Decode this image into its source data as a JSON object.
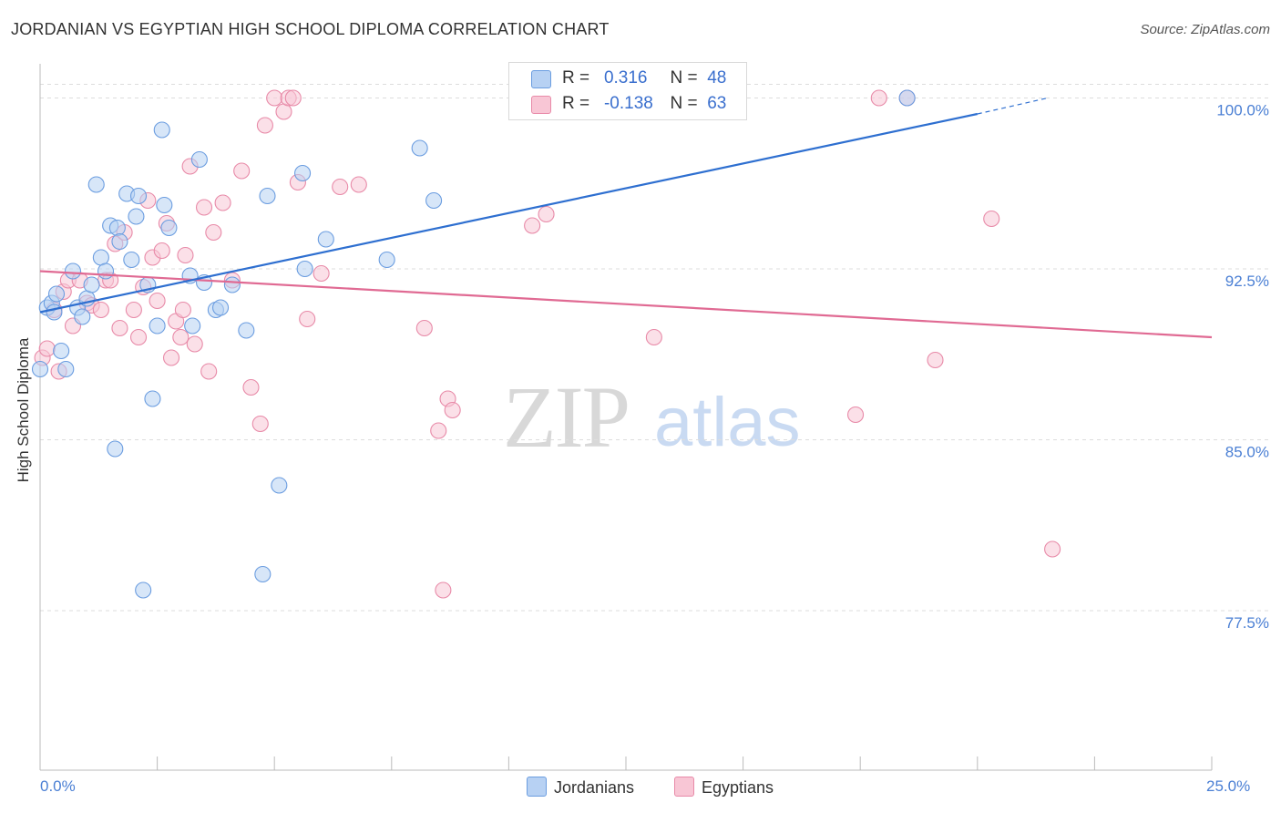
{
  "title": "JORDANIAN VS EGYPTIAN HIGH SCHOOL DIPLOMA CORRELATION CHART",
  "source": "Source: ZipAtlas.com",
  "watermark": {
    "part1": "ZIP",
    "part2": "atlas"
  },
  "colors": {
    "jordanian_fill": "#b7d1f3",
    "jordanian_stroke": "#6b9de0",
    "jordanian_line": "#2e6fd0",
    "egyptian_fill": "#f8c6d5",
    "egyptian_stroke": "#e88aa8",
    "egyptian_line": "#e06a93",
    "tick_label": "#4a7fd4",
    "grid": "#dddddd"
  },
  "legend_top": {
    "rows": [
      {
        "r_label": "R =",
        "r_value": "0.316",
        "n_label": "N =",
        "n_value": "48"
      },
      {
        "r_label": "R =",
        "r_value": "-0.138",
        "n_label": "N =",
        "n_value": "63"
      }
    ]
  },
  "legend_bottom": {
    "jordanians": "Jordanians",
    "egyptians": "Egyptians"
  },
  "chart_data": {
    "type": "scatter",
    "xlabel": "",
    "ylabel": "High School Diploma",
    "xlim": [
      0,
      25
    ],
    "ylim": [
      70.5,
      101.5
    ],
    "x_tick_labels": [
      "0.0%",
      "25.0%"
    ],
    "y_ticks": [
      77.5,
      85.0,
      92.5,
      100.0
    ],
    "y_tick_labels": [
      "77.5%",
      "85.0%",
      "92.5%",
      "100.0%"
    ],
    "grid": true,
    "legend_position": "top-center",
    "series": [
      {
        "name": "Jordanians",
        "R": 0.316,
        "N": 48,
        "trend": {
          "x0": 0.0,
          "y0": 90.6,
          "x1": 20.0,
          "y1": 99.3,
          "dashed_to_x": 21.5,
          "dashed_to_y": 100.0
        },
        "points": [
          [
            0.0,
            88.1
          ],
          [
            0.15,
            90.8
          ],
          [
            0.25,
            91.0
          ],
          [
            0.3,
            90.6
          ],
          [
            0.35,
            91.4
          ],
          [
            0.45,
            88.9
          ],
          [
            0.55,
            88.1
          ],
          [
            0.7,
            92.4
          ],
          [
            0.8,
            90.8
          ],
          [
            0.9,
            90.4
          ],
          [
            1.0,
            91.2
          ],
          [
            1.1,
            91.8
          ],
          [
            1.2,
            96.2
          ],
          [
            1.3,
            93.0
          ],
          [
            1.4,
            92.4
          ],
          [
            1.5,
            94.4
          ],
          [
            1.6,
            84.6
          ],
          [
            1.65,
            94.3
          ],
          [
            1.7,
            93.7
          ],
          [
            1.85,
            95.8
          ],
          [
            1.95,
            92.9
          ],
          [
            2.05,
            94.8
          ],
          [
            2.1,
            95.7
          ],
          [
            2.2,
            78.4
          ],
          [
            2.3,
            91.8
          ],
          [
            2.4,
            86.8
          ],
          [
            2.5,
            90.0
          ],
          [
            2.6,
            98.6
          ],
          [
            2.65,
            95.3
          ],
          [
            2.75,
            94.3
          ],
          [
            3.2,
            92.2
          ],
          [
            3.25,
            90.0
          ],
          [
            3.4,
            97.3
          ],
          [
            3.5,
            91.9
          ],
          [
            3.75,
            90.7
          ],
          [
            3.85,
            90.8
          ],
          [
            4.1,
            91.8
          ],
          [
            4.4,
            89.8
          ],
          [
            4.75,
            79.1
          ],
          [
            4.85,
            95.7
          ],
          [
            5.1,
            83.0
          ],
          [
            5.6,
            96.7
          ],
          [
            5.65,
            92.5
          ],
          [
            6.1,
            93.8
          ],
          [
            7.4,
            92.9
          ],
          [
            8.1,
            97.8
          ],
          [
            8.4,
            95.5
          ],
          [
            18.5,
            100.0
          ]
        ]
      },
      {
        "name": "Egyptians",
        "R": -0.138,
        "N": 63,
        "trend": {
          "x0": 0.0,
          "y0": 92.4,
          "x1": 25.0,
          "y1": 89.5
        },
        "points": [
          [
            0.05,
            88.6
          ],
          [
            0.15,
            89.0
          ],
          [
            0.3,
            90.7
          ],
          [
            0.4,
            88.0
          ],
          [
            0.5,
            91.5
          ],
          [
            0.6,
            92.0
          ],
          [
            0.7,
            90.0
          ],
          [
            0.85,
            92.0
          ],
          [
            1.0,
            91.0
          ],
          [
            1.1,
            90.9
          ],
          [
            1.3,
            90.7
          ],
          [
            1.4,
            92.0
          ],
          [
            1.5,
            92.0
          ],
          [
            1.6,
            93.6
          ],
          [
            1.7,
            89.9
          ],
          [
            1.8,
            94.1
          ],
          [
            2.0,
            90.7
          ],
          [
            2.1,
            89.5
          ],
          [
            2.2,
            91.7
          ],
          [
            2.3,
            95.5
          ],
          [
            2.4,
            93.0
          ],
          [
            2.5,
            91.1
          ],
          [
            2.6,
            93.3
          ],
          [
            2.7,
            94.5
          ],
          [
            2.8,
            88.6
          ],
          [
            2.9,
            90.2
          ],
          [
            3.0,
            89.5
          ],
          [
            3.05,
            90.7
          ],
          [
            3.1,
            93.1
          ],
          [
            3.2,
            97.0
          ],
          [
            3.3,
            89.2
          ],
          [
            3.5,
            95.2
          ],
          [
            3.6,
            88.0
          ],
          [
            3.7,
            94.1
          ],
          [
            3.9,
            95.4
          ],
          [
            4.1,
            92.0
          ],
          [
            4.3,
            96.8
          ],
          [
            4.5,
            87.3
          ],
          [
            4.7,
            85.7
          ],
          [
            4.8,
            98.8
          ],
          [
            5.0,
            100.0
          ],
          [
            5.2,
            99.4
          ],
          [
            5.3,
            100.0
          ],
          [
            5.4,
            100.0
          ],
          [
            5.5,
            96.3
          ],
          [
            5.7,
            90.3
          ],
          [
            6.0,
            92.3
          ],
          [
            6.4,
            96.1
          ],
          [
            6.8,
            96.2
          ],
          [
            8.2,
            89.9
          ],
          [
            8.5,
            85.4
          ],
          [
            8.6,
            78.4
          ],
          [
            8.7,
            86.8
          ],
          [
            8.8,
            86.3
          ],
          [
            10.5,
            94.4
          ],
          [
            10.8,
            94.9
          ],
          [
            13.1,
            89.5
          ],
          [
            17.4,
            86.1
          ],
          [
            17.9,
            100.0
          ],
          [
            19.1,
            88.5
          ],
          [
            20.3,
            94.7
          ],
          [
            21.6,
            80.2
          ],
          [
            18.5,
            100.0
          ]
        ]
      }
    ]
  }
}
